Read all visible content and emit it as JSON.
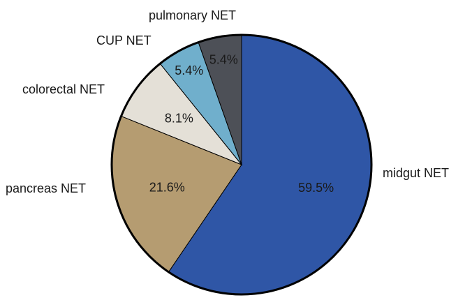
{
  "chart_data": {
    "type": "pie",
    "start_angle_deg": 0,
    "direction": "clockwise",
    "slices": [
      {
        "label": "midgut NET",
        "value": 59.5,
        "value_label": "59.5%",
        "color": "#2f56a6"
      },
      {
        "label": "pancreas NET",
        "value": 21.6,
        "value_label": "21.6%",
        "color": "#b59c71"
      },
      {
        "label": "colorectal NET",
        "value": 8.1,
        "value_label": "8.1%",
        "color": "#e4e0d7"
      },
      {
        "label": "CUP NET",
        "value": 5.4,
        "value_label": "5.4%",
        "color": "#70afcc"
      },
      {
        "label": "pulmonary NET",
        "value": 5.4,
        "value_label": "5.4%",
        "color": "#4d5057"
      }
    ]
  }
}
